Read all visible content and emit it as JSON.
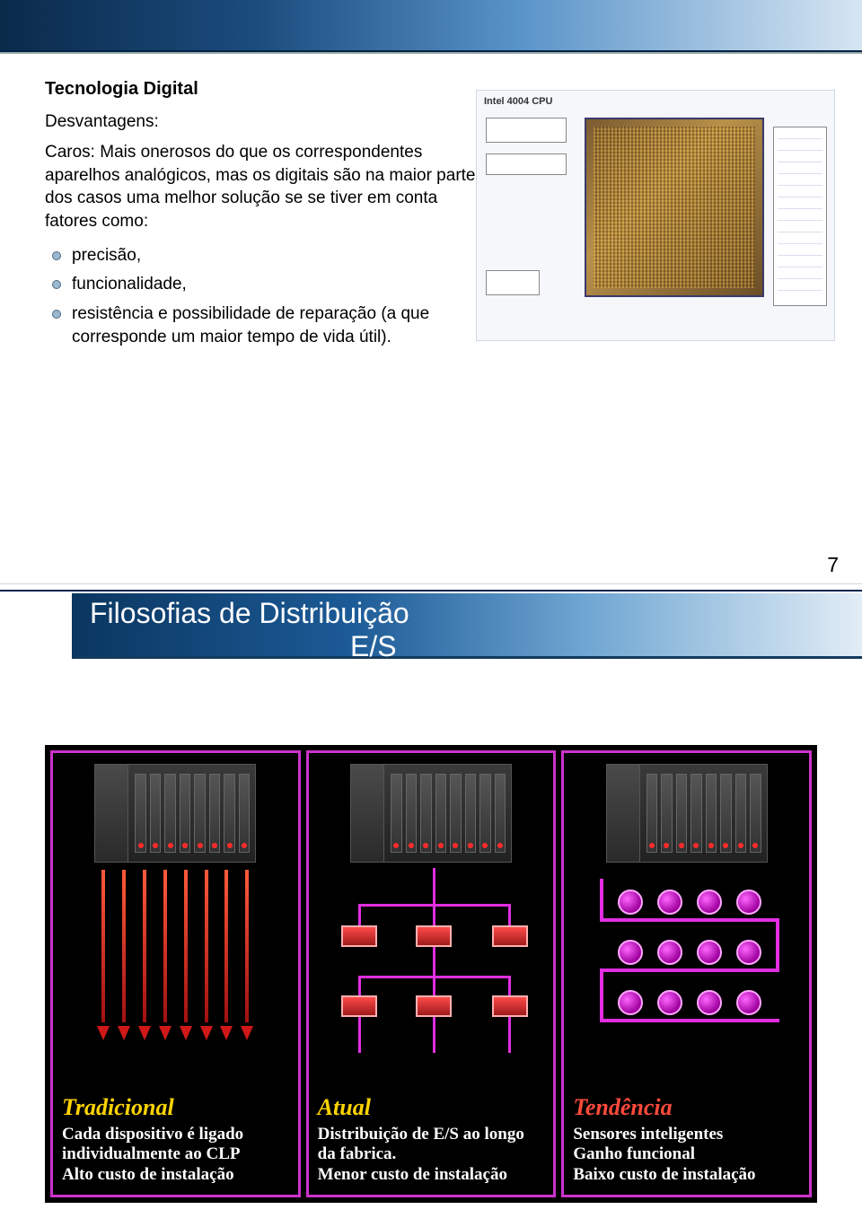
{
  "colors": {
    "header_grad_from": "#0a2a4a",
    "header_grad_to": "#d6e5f2",
    "title2_grad_from": "#0a3660",
    "title2_grad_to": "#e2edf6",
    "panel_border": "#cc33cc",
    "infographic_bg": "#000000",
    "caption_yellow": "#ffd400",
    "caption_red": "#ff4a3c",
    "caption_body": "#ffffff",
    "arrow_red": "#d01818",
    "node_magenta": "#e22ee2"
  },
  "slide1": {
    "title": "Tecnologia Digital",
    "subsection": "Desvantagens:",
    "body": "Caros:  Mais onerosos do que os correspondentes aparelhos analógicos,  mas os digitais são na maior parte dos casos uma melhor solução se se tiver em conta fatores como:",
    "bullets": [
      "precisão,",
      "funcionalidade,",
      "resistência e possibilidade de reparação (a que corresponde um maior tempo de vida útil)."
    ],
    "diagram_label": "Intel 4004 CPU"
  },
  "page_number": "7",
  "slide2": {
    "title_line1": "Filosofias de Distribuição",
    "title_line2": "E/S",
    "panels": [
      {
        "title": "Tradicional",
        "title_color": "yellow",
        "body": "Cada dispositivo é ligado individualmente ao CLP\nAlto custo de instalação"
      },
      {
        "title": "Atual",
        "title_color": "yellow",
        "body": "Distribuição de E/S ao longo da fabrica.\nMenor custo de instalação"
      },
      {
        "title": "Tendência",
        "title_color": "red",
        "body": "Sensores inteligentes\nGanho funcional\nBaixo custo de instalação"
      }
    ]
  }
}
